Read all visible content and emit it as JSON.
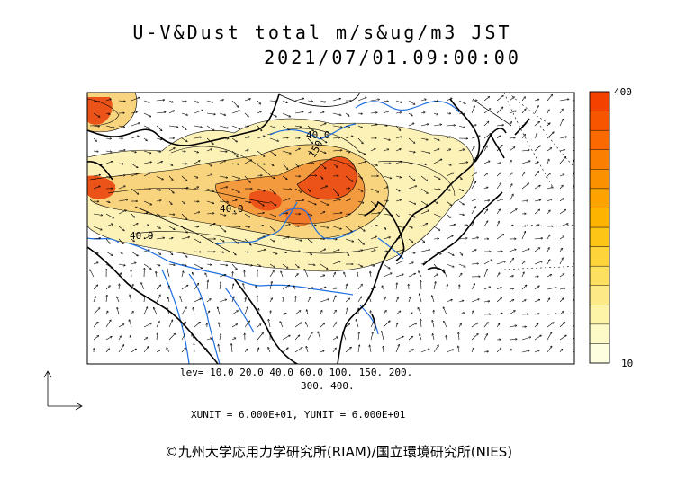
{
  "title": {
    "line1": "U-V&Dust total m/s&ug/m3 JST",
    "line2": "2021/07/01.09:00:00"
  },
  "colorbar": {
    "max_label": "400",
    "min_label": "10",
    "colors": [
      "#fdfde0",
      "#fdfac8",
      "#fdf4a8",
      "#fdea86",
      "#fde060",
      "#fdd43a",
      "#fdc516",
      "#fdb400",
      "#fca300",
      "#fc9100",
      "#fb7f00",
      "#fa6a00",
      "#f75500",
      "#f34100"
    ]
  },
  "contour_levels_text": {
    "line1": "lev= 10.0 20.0 40.0 60.0 100. 150. 200.",
    "line2": "300. 400."
  },
  "contour_labels": [
    "40.0",
    "150",
    "40.0",
    "40.0"
  ],
  "units_text": "XUNIT = 6.000E+01, YUNIT = 6.000E+01",
  "credit": "©九州大学応用力学研究所(RIAM)/国立環境研究所(NIES)",
  "colors": {
    "river": "#1f6fe0",
    "coast": "#000000",
    "dust_low": "#fcf2b6",
    "dust_mid": "#f8d27a",
    "dust_high": "#f37b2c",
    "dust_peak": "#e9450f"
  }
}
